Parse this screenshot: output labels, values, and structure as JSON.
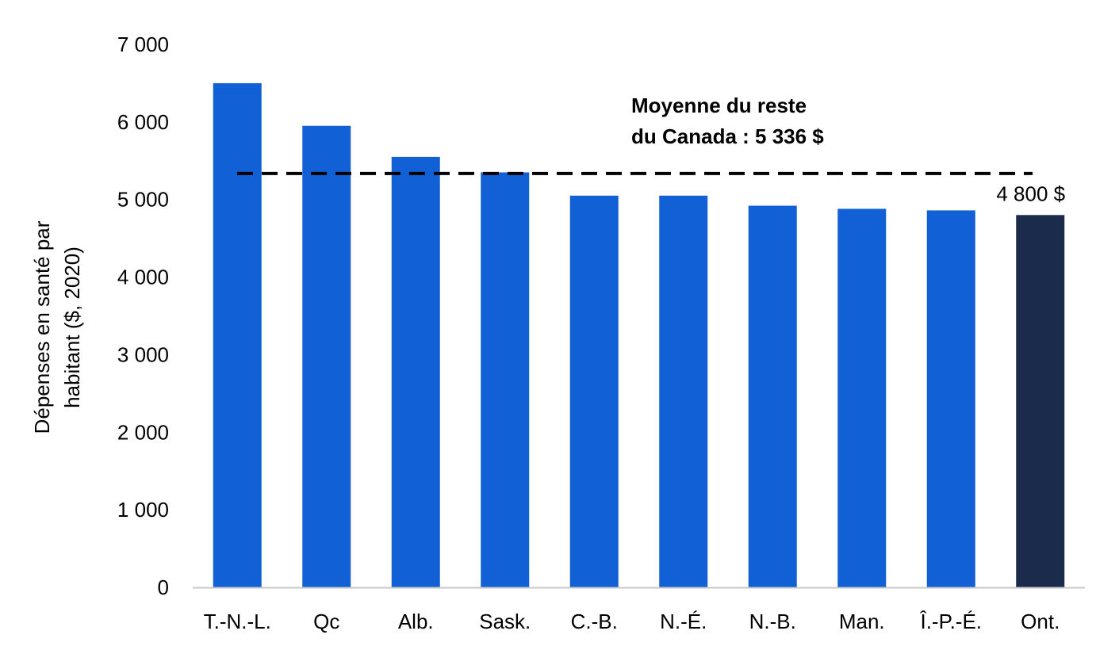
{
  "chart_data": {
    "type": "bar",
    "categories": [
      "T.-N.-L.",
      "Qc",
      "Alb.",
      "Sask.",
      "C.-B.",
      "N.-É.",
      "N.-B.",
      "Man.",
      "Î.-P.-É.",
      "Ont."
    ],
    "values": [
      6500,
      5950,
      5550,
      5350,
      5050,
      5050,
      4920,
      4880,
      4860,
      4800
    ],
    "ylabel_lines": [
      "Dépenses en santé par",
      "habitant ($, 2020)"
    ],
    "xlabel": "",
    "ylim": [
      0,
      7000
    ],
    "yticks": [
      0,
      1000,
      2000,
      3000,
      4000,
      5000,
      6000,
      7000
    ],
    "ytick_labels": [
      "0",
      "1 000",
      "2 000",
      "3 000",
      "4 000",
      "5 000",
      "6 000",
      "7 000"
    ],
    "grid": false,
    "reference_line": {
      "value": 5336,
      "style": "dashed",
      "label_lines": [
        "Moyenne du reste",
        "du Canada : 5 336 $"
      ]
    },
    "data_labels": [
      {
        "category": "Ont.",
        "text": "4 800 $"
      }
    ],
    "colors": {
      "default_bar": "#1160d6",
      "highlight_bar": "#1b2b4b",
      "reference_line": "#000000",
      "axis": "#c8c8c8"
    },
    "highlight_category": "Ont."
  }
}
